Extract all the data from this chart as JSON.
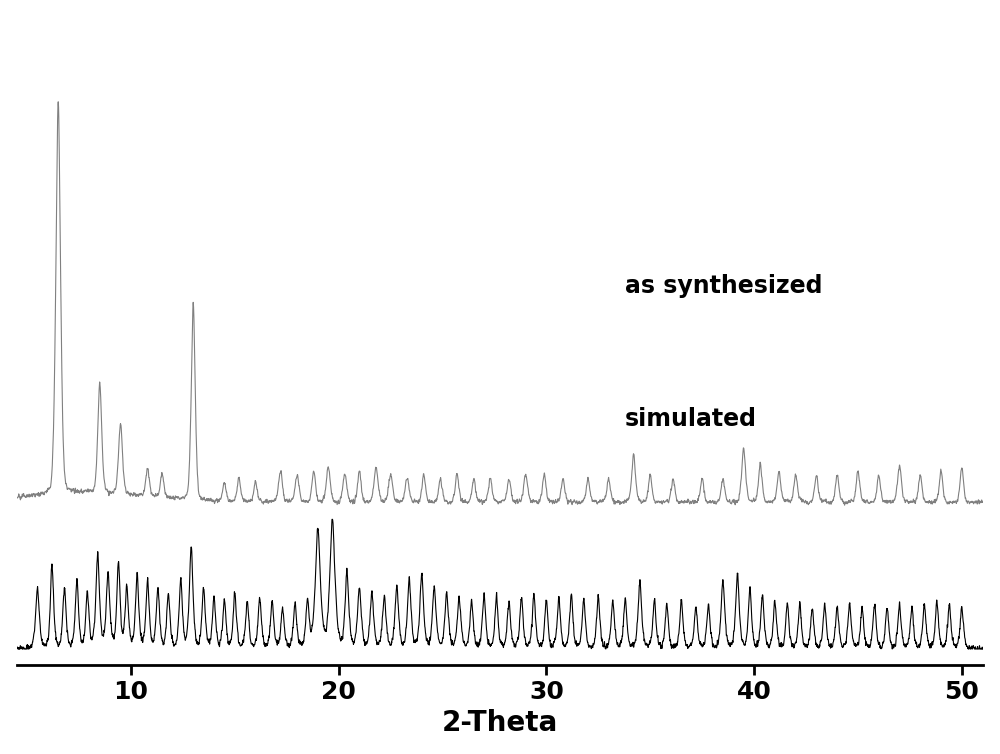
{
  "title": "",
  "xlabel": "2-Theta",
  "xlabel_fontsize": 20,
  "tick_fontsize": 18,
  "label_as_synthesized": "as synthesized",
  "label_simulated": "simulated",
  "color_as_synthesized": "#808080",
  "color_simulated": "#000000",
  "xlim": [
    4.5,
    51
  ],
  "xticks": [
    10,
    20,
    30,
    40,
    50
  ],
  "background_color": "#ffffff",
  "line_width": 0.8
}
